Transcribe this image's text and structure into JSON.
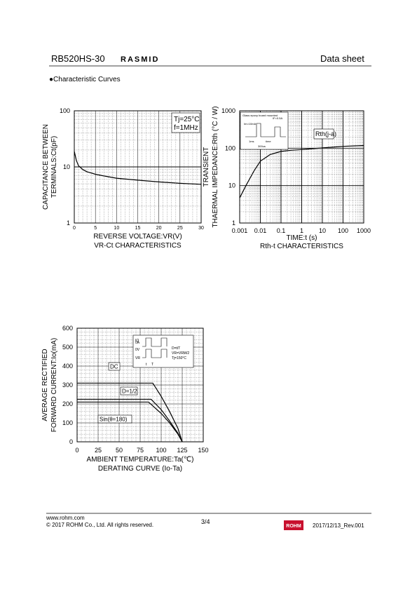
{
  "header": {
    "part": "RB520HS-30",
    "brand": "RASMID",
    "doc": "Data sheet",
    "section": "●Characteristic Curves"
  },
  "footer": {
    "url": "www.rohm.com",
    "copyright": "© 2017 ROHM Co., Ltd. All rights reserved.",
    "page": "3/4",
    "logo": "ROHM",
    "rev": "2017/12/13_Rev.001"
  },
  "chart_data": [
    {
      "type": "line",
      "ylabel": [
        "CAPACITANCE BETWEEN",
        "TERMINALS:Ct(pF)"
      ],
      "xlabel": "REVERSE VOLTAGE:VR(V)",
      "caption": "VR-Ct CHARACTERISTICS",
      "annotation": [
        "Tj=25°C",
        "f=1MHz"
      ],
      "color": "#000000",
      "xlog": false,
      "ylog": true,
      "x": [
        0,
        0.5,
        1,
        2,
        3,
        5,
        7,
        10,
        15,
        20,
        25,
        30
      ],
      "values": [
        19,
        13,
        10.5,
        9,
        8.2,
        7.4,
        6.9,
        6.3,
        5.8,
        5.4,
        5.1,
        4.9
      ],
      "xlim": [
        0,
        30
      ],
      "xticks": [
        0,
        5,
        10,
        15,
        20,
        25,
        30
      ],
      "ylim": [
        1,
        100
      ],
      "yticks": [
        1,
        10,
        100
      ],
      "grid": true
    },
    {
      "type": "line",
      "ylabel": [
        "TRANSIENT",
        "THAERMAL IMPEDANCE:Rth (°C / W)"
      ],
      "xlabel": "TIME:t (s)",
      "caption": "Rth-t CHARACTERISTICS",
      "annotation": [
        "Rth(j-a)"
      ],
      "inset": [
        "Glass epoxy board mounted",
        "Im=10mA",
        "IF=0.5A",
        "1ms",
        "time",
        "300us"
      ],
      "color": "#000000",
      "xlog": true,
      "ylog": true,
      "x": [
        0.001,
        0.002,
        0.005,
        0.01,
        0.03,
        0.1,
        0.3,
        1,
        10,
        100,
        1000
      ],
      "values": [
        4.7,
        10,
        25,
        45,
        68,
        82,
        88,
        92,
        102,
        112,
        118
      ],
      "xlim": [
        0.001,
        1000
      ],
      "xticks": [
        0.001,
        0.01,
        0.1,
        1,
        10,
        100,
        1000
      ],
      "ylim": [
        1,
        1000
      ],
      "yticks": [
        1,
        10,
        100,
        1000
      ],
      "grid": true
    },
    {
      "type": "line",
      "ylabel": [
        "AVERAGE RECTIFIED",
        "FORWARD CURRENT:Io(mA)"
      ],
      "xlabel": "AMBIENT TEMPERATURE:Ta(℃)",
      "caption": "DERATING CURVE (Io-Ta)",
      "inset": [
        "0A",
        "0V",
        "IO",
        "VR",
        "t",
        "T",
        "D=t/T",
        "VR=VRM/2",
        "Tj=150°C"
      ],
      "xlog": false,
      "ylog": false,
      "series": [
        {
          "name": "DC",
          "color": "#000000",
          "x": [
            0,
            90,
            100,
            110,
            120,
            125
          ],
          "values": [
            310,
            310,
            240,
            160,
            70,
            0
          ]
        },
        {
          "name": "D=1/2",
          "color": "#000000",
          "x": [
            0,
            88,
            100,
            110,
            120,
            125
          ],
          "values": [
            225,
            225,
            170,
            110,
            45,
            0
          ]
        },
        {
          "name": "Sin(θ=180)",
          "color": "#000000",
          "x": [
            0,
            85,
            100,
            110,
            120,
            125
          ],
          "values": [
            210,
            210,
            150,
            100,
            40,
            0
          ]
        }
      ],
      "xlim": [
        0,
        150
      ],
      "xticks": [
        0,
        25,
        50,
        75,
        100,
        125,
        150
      ],
      "ylim": [
        0,
        600
      ],
      "yticks": [
        0,
        100,
        200,
        300,
        400,
        500,
        600
      ],
      "grid": true
    }
  ]
}
